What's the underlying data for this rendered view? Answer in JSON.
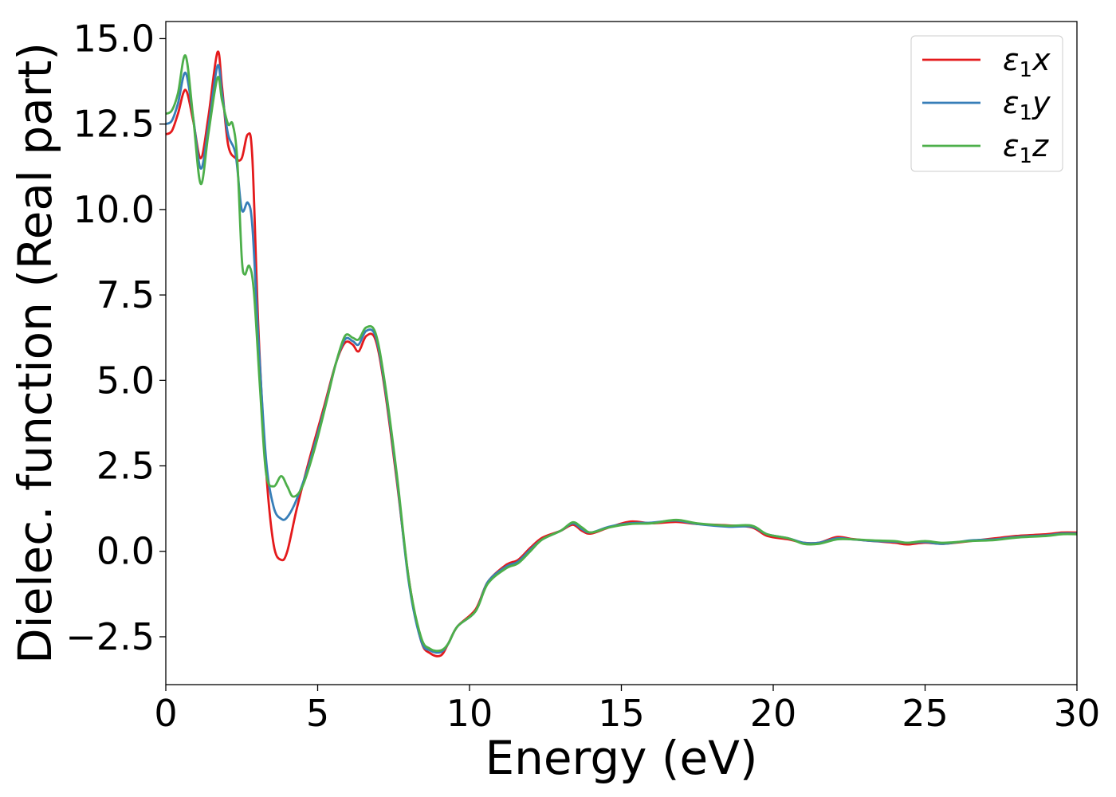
{
  "chart_data": {
    "type": "line",
    "xlabel": "Energy (eV)",
    "ylabel": "Dielec. function (Real part)",
    "xlim": [
      0,
      30
    ],
    "ylim": [
      -3.9,
      15.5
    ],
    "xticks": [
      0,
      5,
      10,
      15,
      20,
      25,
      30
    ],
    "xtick_labels": [
      "0",
      "5",
      "10",
      "15",
      "20",
      "25",
      "30"
    ],
    "yticks": [
      -2.5,
      0.0,
      2.5,
      5.0,
      7.5,
      10.0,
      12.5,
      15.0
    ],
    "ytick_labels": [
      "−2.5",
      "0.0",
      "2.5",
      "5.0",
      "7.5",
      "10.0",
      "12.5",
      "15.0"
    ],
    "grid": false,
    "legend_position": "top-right",
    "series": [
      {
        "name": "ε1x",
        "legend_base": "ε",
        "legend_sub": "1",
        "legend_tail": "x",
        "color": "#e41a1c",
        "points": [
          [
            0,
            12.2
          ],
          [
            0.2,
            12.3
          ],
          [
            0.4,
            12.8
          ],
          [
            0.65,
            13.5
          ],
          [
            0.9,
            12.6
          ],
          [
            1.15,
            11.5
          ],
          [
            1.4,
            12.7
          ],
          [
            1.7,
            14.6
          ],
          [
            1.85,
            13.6
          ],
          [
            2.05,
            11.9
          ],
          [
            2.3,
            11.5
          ],
          [
            2.5,
            11.5
          ],
          [
            2.7,
            12.2
          ],
          [
            2.85,
            11.5
          ],
          [
            3.05,
            6.5
          ],
          [
            3.3,
            2.4
          ],
          [
            3.55,
            0.2
          ],
          [
            3.8,
            -0.25
          ],
          [
            4.0,
            0.0
          ],
          [
            4.3,
            1.2
          ],
          [
            4.7,
            2.6
          ],
          [
            5.2,
            4.2
          ],
          [
            5.6,
            5.5
          ],
          [
            5.9,
            6.1
          ],
          [
            6.15,
            6.05
          ],
          [
            6.35,
            5.85
          ],
          [
            6.6,
            6.3
          ],
          [
            6.9,
            6.2
          ],
          [
            7.2,
            4.8
          ],
          [
            7.6,
            2.1
          ],
          [
            8.0,
            -0.8
          ],
          [
            8.4,
            -2.6
          ],
          [
            8.7,
            -2.98
          ],
          [
            9.05,
            -3.05
          ],
          [
            9.3,
            -2.7
          ],
          [
            9.6,
            -2.2
          ],
          [
            10.2,
            -1.7
          ],
          [
            10.6,
            -0.9
          ],
          [
            11.2,
            -0.4
          ],
          [
            11.6,
            -0.25
          ],
          [
            12.0,
            0.1
          ],
          [
            12.4,
            0.4
          ],
          [
            13.0,
            0.6
          ],
          [
            13.4,
            0.78
          ],
          [
            13.7,
            0.6
          ],
          [
            14.0,
            0.52
          ],
          [
            14.6,
            0.7
          ],
          [
            15.3,
            0.87
          ],
          [
            16.0,
            0.82
          ],
          [
            16.8,
            0.86
          ],
          [
            17.5,
            0.8
          ],
          [
            18.5,
            0.76
          ],
          [
            19.3,
            0.7
          ],
          [
            19.8,
            0.45
          ],
          [
            20.5,
            0.35
          ],
          [
            21.0,
            0.25
          ],
          [
            21.5,
            0.25
          ],
          [
            22.1,
            0.42
          ],
          [
            22.6,
            0.36
          ],
          [
            23.3,
            0.3
          ],
          [
            24.0,
            0.25
          ],
          [
            24.4,
            0.2
          ],
          [
            25.0,
            0.25
          ],
          [
            25.6,
            0.22
          ],
          [
            26.5,
            0.3
          ],
          [
            27.3,
            0.38
          ],
          [
            28.0,
            0.45
          ],
          [
            29.0,
            0.5
          ],
          [
            29.5,
            0.55
          ],
          [
            30,
            0.55
          ]
        ]
      },
      {
        "name": "ε1y",
        "legend_base": "ε",
        "legend_sub": "1",
        "legend_tail": "y",
        "color": "#377eb8",
        "points": [
          [
            0,
            12.5
          ],
          [
            0.2,
            12.6
          ],
          [
            0.4,
            13.1
          ],
          [
            0.65,
            14.0
          ],
          [
            0.9,
            12.7
          ],
          [
            1.15,
            11.2
          ],
          [
            1.4,
            12.4
          ],
          [
            1.7,
            14.2
          ],
          [
            1.85,
            13.4
          ],
          [
            2.05,
            12.2
          ],
          [
            2.3,
            11.6
          ],
          [
            2.5,
            10.0
          ],
          [
            2.7,
            10.2
          ],
          [
            2.85,
            9.5
          ],
          [
            3.05,
            6.2
          ],
          [
            3.3,
            2.7
          ],
          [
            3.55,
            1.3
          ],
          [
            3.8,
            0.95
          ],
          [
            4.0,
            1.0
          ],
          [
            4.3,
            1.5
          ],
          [
            4.7,
            2.5
          ],
          [
            5.2,
            4.1
          ],
          [
            5.6,
            5.5
          ],
          [
            5.9,
            6.2
          ],
          [
            6.15,
            6.15
          ],
          [
            6.35,
            6.05
          ],
          [
            6.6,
            6.45
          ],
          [
            6.9,
            6.3
          ],
          [
            7.2,
            4.9
          ],
          [
            7.6,
            2.2
          ],
          [
            8.0,
            -0.9
          ],
          [
            8.4,
            -2.6
          ],
          [
            8.7,
            -2.9
          ],
          [
            9.05,
            -2.95
          ],
          [
            9.3,
            -2.7
          ],
          [
            9.6,
            -2.2
          ],
          [
            10.2,
            -1.75
          ],
          [
            10.6,
            -0.9
          ],
          [
            11.2,
            -0.45
          ],
          [
            11.6,
            -0.3
          ],
          [
            12.0,
            0.05
          ],
          [
            12.4,
            0.35
          ],
          [
            13.0,
            0.6
          ],
          [
            13.4,
            0.82
          ],
          [
            13.7,
            0.65
          ],
          [
            14.0,
            0.55
          ],
          [
            14.6,
            0.72
          ],
          [
            15.3,
            0.82
          ],
          [
            16.0,
            0.84
          ],
          [
            16.8,
            0.9
          ],
          [
            17.5,
            0.8
          ],
          [
            18.5,
            0.72
          ],
          [
            19.3,
            0.72
          ],
          [
            19.8,
            0.5
          ],
          [
            20.5,
            0.38
          ],
          [
            21.0,
            0.25
          ],
          [
            21.5,
            0.25
          ],
          [
            22.1,
            0.38
          ],
          [
            22.6,
            0.35
          ],
          [
            23.3,
            0.3
          ],
          [
            24.0,
            0.28
          ],
          [
            24.4,
            0.25
          ],
          [
            25.0,
            0.27
          ],
          [
            25.6,
            0.22
          ],
          [
            26.5,
            0.32
          ],
          [
            27.3,
            0.35
          ],
          [
            28.0,
            0.42
          ],
          [
            29.0,
            0.47
          ],
          [
            29.5,
            0.52
          ],
          [
            30,
            0.52
          ]
        ]
      },
      {
        "name": "ε1z",
        "legend_base": "ε",
        "legend_sub": "1",
        "legend_tail": "z",
        "color": "#4daf4a",
        "points": [
          [
            0,
            12.8
          ],
          [
            0.2,
            12.9
          ],
          [
            0.4,
            13.4
          ],
          [
            0.65,
            14.5
          ],
          [
            0.9,
            12.7
          ],
          [
            1.15,
            10.75
          ],
          [
            1.4,
            12.2
          ],
          [
            1.7,
            13.85
          ],
          [
            1.85,
            13.2
          ],
          [
            2.05,
            12.5
          ],
          [
            2.2,
            12.5
          ],
          [
            2.35,
            11.5
          ],
          [
            2.5,
            8.6
          ],
          [
            2.6,
            8.1
          ],
          [
            2.75,
            8.35
          ],
          [
            2.9,
            7.6
          ],
          [
            3.1,
            4.8
          ],
          [
            3.3,
            2.3
          ],
          [
            3.55,
            1.9
          ],
          [
            3.8,
            2.2
          ],
          [
            4.0,
            1.9
          ],
          [
            4.2,
            1.6
          ],
          [
            4.5,
            1.9
          ],
          [
            4.9,
            3.0
          ],
          [
            5.3,
            4.4
          ],
          [
            5.6,
            5.5
          ],
          [
            5.9,
            6.3
          ],
          [
            6.15,
            6.25
          ],
          [
            6.35,
            6.2
          ],
          [
            6.6,
            6.55
          ],
          [
            6.9,
            6.4
          ],
          [
            7.2,
            5.0
          ],
          [
            7.6,
            2.3
          ],
          [
            8.0,
            -0.8
          ],
          [
            8.4,
            -2.5
          ],
          [
            8.7,
            -2.85
          ],
          [
            9.05,
            -2.9
          ],
          [
            9.3,
            -2.7
          ],
          [
            9.6,
            -2.2
          ],
          [
            10.2,
            -1.75
          ],
          [
            10.6,
            -0.95
          ],
          [
            11.2,
            -0.5
          ],
          [
            11.6,
            -0.35
          ],
          [
            12.0,
            0.0
          ],
          [
            12.4,
            0.35
          ],
          [
            13.0,
            0.6
          ],
          [
            13.4,
            0.85
          ],
          [
            13.7,
            0.7
          ],
          [
            14.0,
            0.55
          ],
          [
            14.6,
            0.7
          ],
          [
            15.3,
            0.8
          ],
          [
            16.0,
            0.82
          ],
          [
            16.8,
            0.92
          ],
          [
            17.5,
            0.82
          ],
          [
            18.5,
            0.75
          ],
          [
            19.3,
            0.75
          ],
          [
            19.8,
            0.5
          ],
          [
            20.5,
            0.38
          ],
          [
            21.0,
            0.22
          ],
          [
            21.5,
            0.22
          ],
          [
            22.1,
            0.35
          ],
          [
            22.6,
            0.35
          ],
          [
            23.3,
            0.32
          ],
          [
            24.0,
            0.3
          ],
          [
            24.4,
            0.25
          ],
          [
            25.0,
            0.3
          ],
          [
            25.6,
            0.25
          ],
          [
            26.5,
            0.3
          ],
          [
            27.3,
            0.33
          ],
          [
            28.0,
            0.4
          ],
          [
            29.0,
            0.45
          ],
          [
            29.5,
            0.5
          ],
          [
            30,
            0.5
          ]
        ]
      }
    ]
  }
}
